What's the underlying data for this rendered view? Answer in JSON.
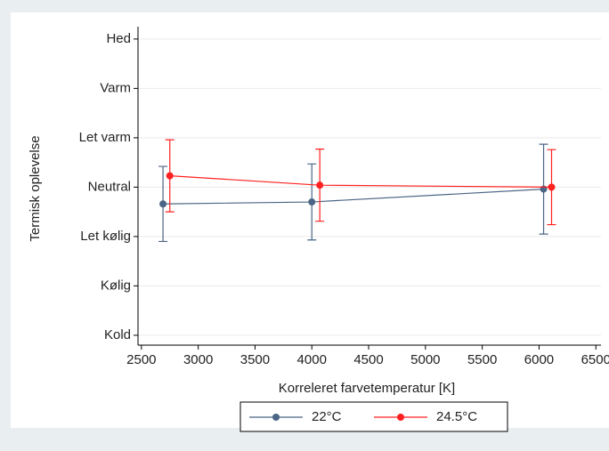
{
  "chart_data": {
    "type": "line",
    "x_label": "Korreleret farvetemperatur [K]",
    "y_label": "Termisk oplevelse",
    "xlim": [
      2470,
      6545
    ],
    "xticks": [
      2500,
      3000,
      3500,
      4000,
      4500,
      5000,
      5500,
      6000,
      6500
    ],
    "ylim": [
      -3.2,
      3.25
    ],
    "yticks": [
      {
        "value": -3,
        "label": "Kold"
      },
      {
        "value": -2,
        "label": "Kølig"
      },
      {
        "value": -1,
        "label": "Let kølig"
      },
      {
        "value": 0,
        "label": "Neutral"
      },
      {
        "value": 1,
        "label": "Let varm"
      },
      {
        "value": 2,
        "label": "Varm"
      },
      {
        "value": 3,
        "label": "Hed"
      }
    ],
    "grid": true,
    "legend": "bottom",
    "series": [
      {
        "name": "22°C",
        "color": "#4a6585",
        "x": [
          2690,
          4000,
          6040
        ],
        "values": [
          -0.34,
          -0.3,
          -0.04
        ],
        "errors": [
          0.76,
          0.77,
          0.91
        ]
      },
      {
        "name": "24.5°C",
        "color": "#ff2020",
        "x": [
          2750,
          4070,
          6110
        ],
        "values": [
          0.23,
          0.04,
          0.0
        ],
        "errors": [
          0.73,
          0.73,
          0.76
        ]
      }
    ]
  }
}
